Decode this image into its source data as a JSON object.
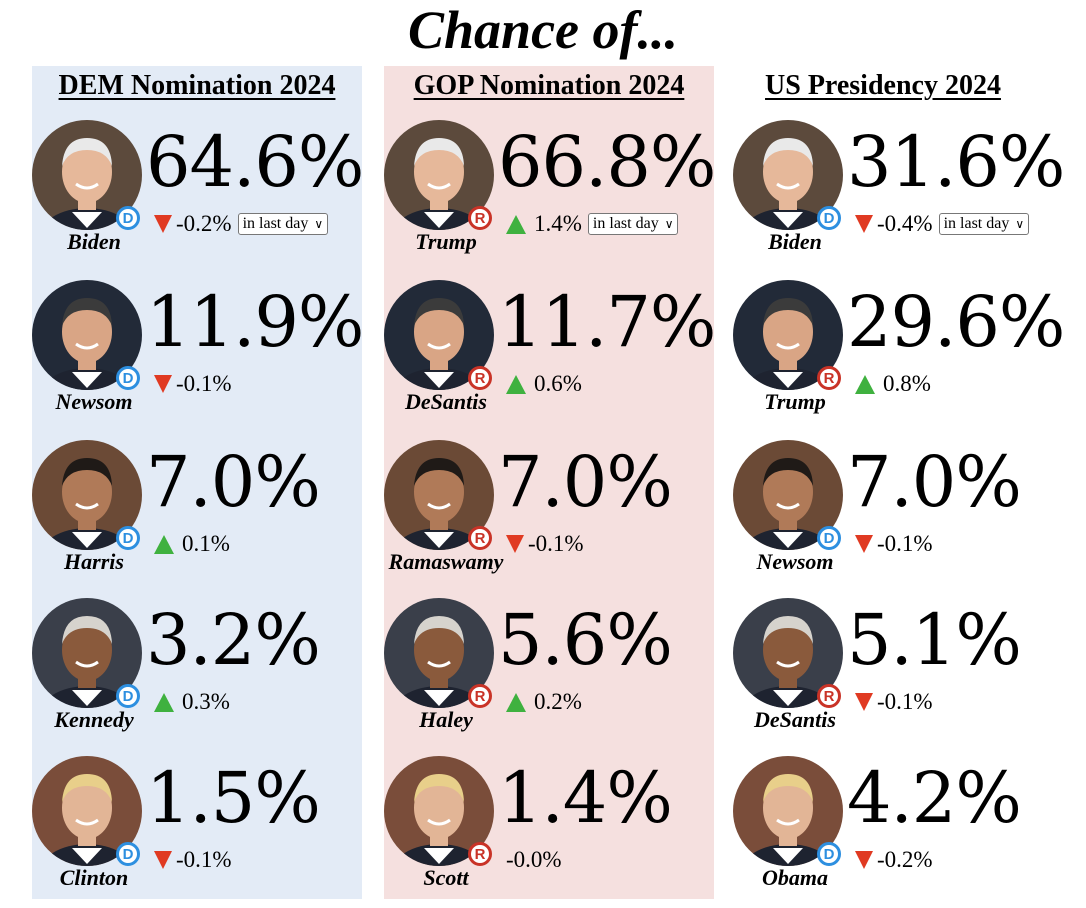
{
  "title": "Chance of...",
  "selector_label": "in last day",
  "colors": {
    "dem_bg": "#e3ebf6",
    "gop_bg": "#f5e0df",
    "dem_badge": "#2d8fe0",
    "gop_badge": "#c93327",
    "down_arrow": "#e03a22",
    "up_arrow": "#3fb13f"
  },
  "columns": [
    {
      "heading": "DEM Nomination 2024",
      "entries": [
        {
          "name": "Biden",
          "party": "D",
          "pct": "64.6%",
          "change": "-0.2%",
          "dir": "down"
        },
        {
          "name": "Newsom",
          "party": "D",
          "pct": "11.9%",
          "change": "-0.1%",
          "dir": "down"
        },
        {
          "name": "Harris",
          "party": "D",
          "pct": "7.0%",
          "change": "0.1%",
          "dir": "up"
        },
        {
          "name": "Kennedy",
          "party": "D",
          "pct": "3.2%",
          "change": "0.3%",
          "dir": "up"
        },
        {
          "name": "Clinton",
          "party": "D",
          "pct": "1.5%",
          "change": "-0.1%",
          "dir": "down"
        }
      ]
    },
    {
      "heading": "GOP Nomination 2024",
      "entries": [
        {
          "name": "Trump",
          "party": "R",
          "pct": "66.8%",
          "change": "1.4%",
          "dir": "up"
        },
        {
          "name": "DeSantis",
          "party": "R",
          "pct": "11.7%",
          "change": "0.6%",
          "dir": "up"
        },
        {
          "name": "Ramaswamy",
          "party": "R",
          "pct": "7.0%",
          "change": "-0.1%",
          "dir": "down"
        },
        {
          "name": "Haley",
          "party": "R",
          "pct": "5.6%",
          "change": "0.2%",
          "dir": "up"
        },
        {
          "name": "Scott",
          "party": "R",
          "pct": "1.4%",
          "change": "-0.0%",
          "dir": "none"
        }
      ]
    },
    {
      "heading": "US Presidency 2024",
      "entries": [
        {
          "name": "Biden",
          "party": "D",
          "pct": "31.6%",
          "change": "-0.4%",
          "dir": "down"
        },
        {
          "name": "Trump",
          "party": "R",
          "pct": "29.6%",
          "change": "0.8%",
          "dir": "up"
        },
        {
          "name": "Newsom",
          "party": "D",
          "pct": "7.0%",
          "change": "-0.1%",
          "dir": "down"
        },
        {
          "name": "DeSantis",
          "party": "R",
          "pct": "5.1%",
          "change": "-0.1%",
          "dir": "down"
        },
        {
          "name": "Obama",
          "party": "D",
          "pct": "4.2%",
          "change": "-0.2%",
          "dir": "down"
        }
      ]
    }
  ]
}
